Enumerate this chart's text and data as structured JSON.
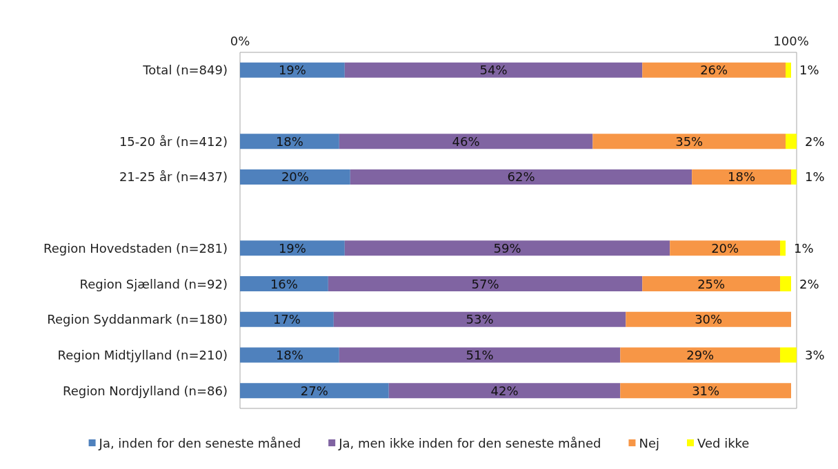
{
  "chart_data": {
    "type": "bar",
    "orientation": "horizontal",
    "stacked": true,
    "categories": [
      "Total (n=849)",
      null,
      "15-20 år (n=412)",
      "21-25 år (n=437)",
      null,
      "Region Hovedstaden (n=281)",
      "Region Sjælland (n=92)",
      "Region Syddanmark (n=180)",
      "Region Midtjylland (n=210)",
      "Region Nordjylland (n=86)"
    ],
    "series": [
      {
        "name": "Ja, inden for den seneste måned",
        "color": "#4f81bd",
        "values": [
          19,
          null,
          18,
          20,
          null,
          19,
          16,
          17,
          18,
          27
        ],
        "value_labels": [
          "19%",
          null,
          "18%",
          "20%",
          null,
          "19%",
          "16%",
          "17%",
          "18%",
          "27%"
        ]
      },
      {
        "name": "Ja, men ikke inden for den seneste måned",
        "color": "#8064a2",
        "values": [
          54,
          null,
          46,
          62,
          null,
          59,
          57,
          53,
          51,
          42
        ],
        "value_labels": [
          "54%",
          null,
          "46%",
          "62%",
          null,
          "59%",
          "57%",
          "53%",
          "51%",
          "42%"
        ]
      },
      {
        "name": "Nej",
        "color": "#f79646",
        "values": [
          26,
          null,
          35,
          18,
          null,
          20,
          25,
          30,
          29,
          31
        ],
        "value_labels": [
          "26%",
          null,
          "35%",
          "18%",
          null,
          "20%",
          "25%",
          "30%",
          "29%",
          "31%"
        ]
      },
      {
        "name": "Ved ikke",
        "color": "#ffff00",
        "values": [
          1,
          null,
          2,
          1,
          null,
          1,
          2,
          null,
          3,
          null
        ],
        "value_labels": [
          "1%",
          null,
          "2%",
          "1%",
          null,
          "1%",
          "2%",
          null,
          "3%",
          null
        ]
      }
    ],
    "xlim": [
      0,
      101
    ],
    "xticks": [
      {
        "value": 0,
        "label": "0%"
      },
      {
        "value": 100,
        "label": "100%"
      }
    ],
    "grid": false,
    "legend": "bottom"
  }
}
